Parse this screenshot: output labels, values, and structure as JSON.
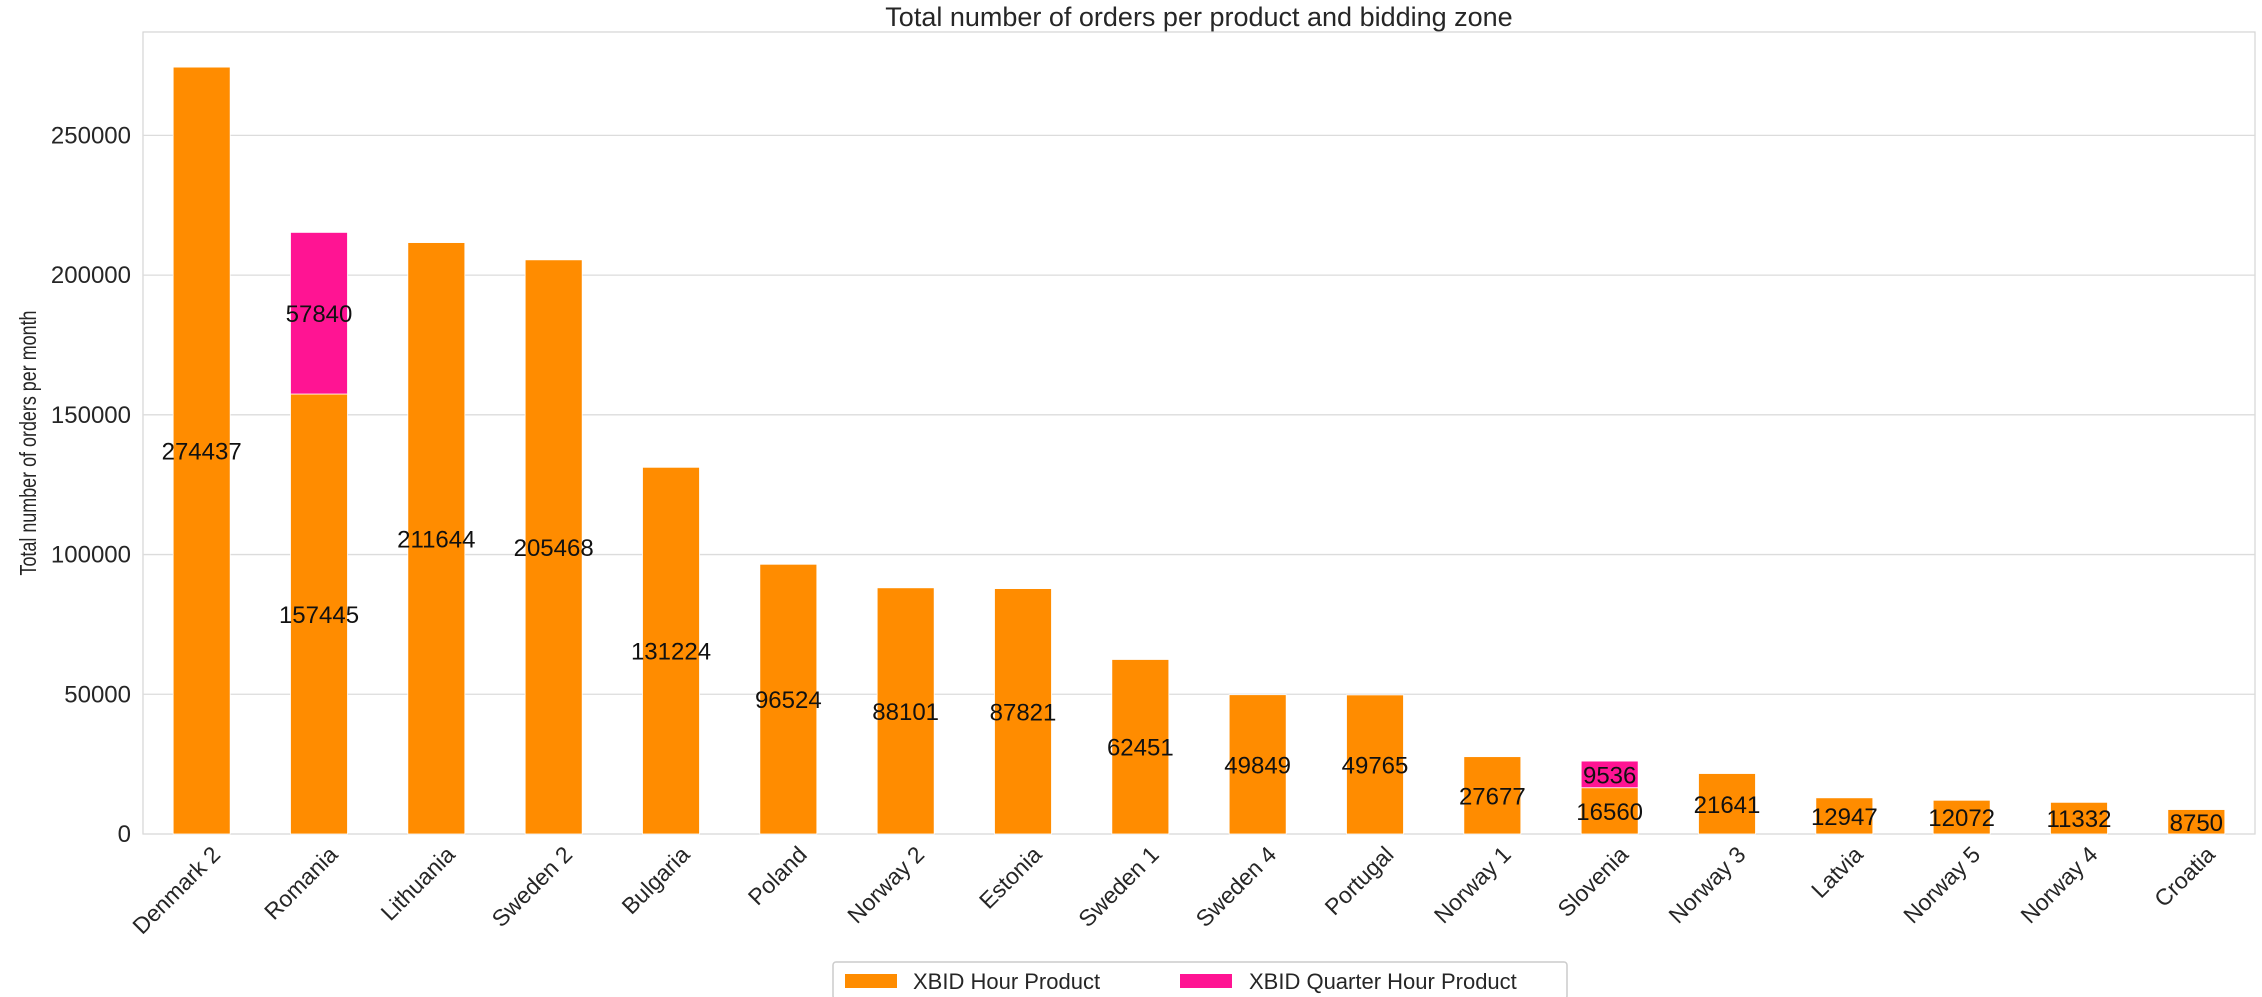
{
  "chart_data": {
    "type": "bar",
    "stacked": true,
    "title": "Total number of orders per product and bidding zone",
    "xlabel": "",
    "ylabel": "Total number of orders per month",
    "ylim": [
      0,
      287000
    ],
    "yticks": [
      0,
      50000,
      100000,
      150000,
      200000,
      250000
    ],
    "grid": true,
    "legend_position": "bottom-center",
    "categories": [
      "Denmark 2",
      "Romania",
      "Lithuania",
      "Sweden 2",
      "Bulgaria",
      "Poland",
      "Norway 2",
      "Estonia",
      "Sweden 1",
      "Sweden 4",
      "Portugal",
      "Norway 1",
      "Slovenia",
      "Norway 3",
      "Latvia",
      "Norway 5",
      "Norway 4",
      "Croatia"
    ],
    "series": [
      {
        "name": "XBID Hour Product",
        "color": "#FF8C00",
        "values": [
          274437,
          157445,
          211644,
          205468,
          131224,
          96524,
          88101,
          87821,
          62451,
          49849,
          49765,
          27677,
          16560,
          21641,
          12947,
          12072,
          11332,
          8750
        ]
      },
      {
        "name": "XBID Quarter Hour Product",
        "color": "#FF1493",
        "values": [
          0,
          57840,
          0,
          0,
          0,
          0,
          0,
          0,
          0,
          0,
          0,
          0,
          9536,
          0,
          0,
          0,
          0,
          0
        ]
      }
    ]
  }
}
